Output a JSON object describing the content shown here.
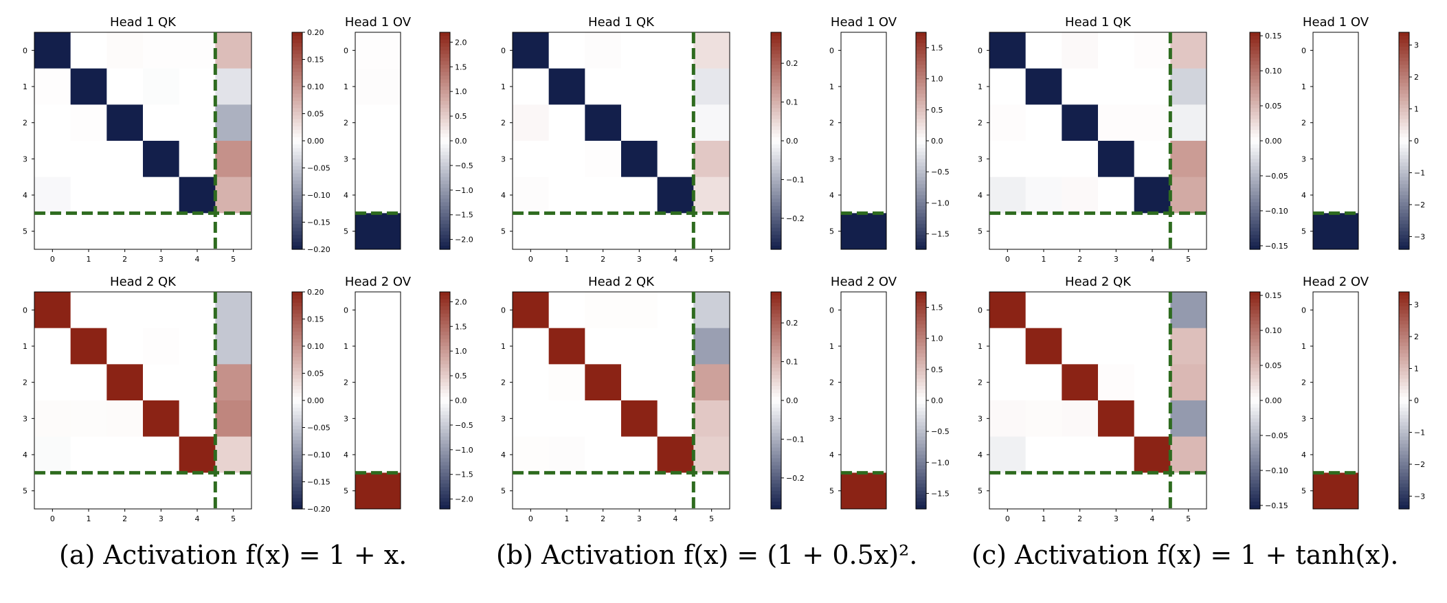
{
  "captions": [
    "(a) Activation f(x) = 1 + x.",
    "(b) Activation f(x) = (1 + 0.5x)².",
    "(c) Activation f(x) = 1 + tanh(x)."
  ],
  "colormap": {
    "neg": "#131f4b",
    "mid": "#ffffff",
    "pos": "#8b2315",
    "divider": "#2e6b1f"
  },
  "chart_data": [
    {
      "type": "heatmap",
      "panel": "a",
      "title": "Head 1 QK",
      "x_ticks": [
        "0",
        "1",
        "2",
        "3",
        "4",
        "5"
      ],
      "y_ticks": [
        "0",
        "1",
        "2",
        "3",
        "4",
        "5"
      ],
      "vmin": -0.2,
      "vmax": 0.2,
      "colorbar_ticks": [
        "0.20",
        "0.15",
        "0.10",
        "0.05",
        "0.00",
        "−0.05",
        "−0.10",
        "−0.15",
        "−0.20"
      ],
      "values": [
        [
          -0.2,
          0,
          0.004,
          0.002,
          0.002,
          0.06
        ],
        [
          0.002,
          -0.2,
          0,
          -0.003,
          0,
          -0.025
        ],
        [
          0,
          0.002,
          -0.2,
          0,
          0,
          -0.07
        ],
        [
          0,
          0,
          0,
          -0.2,
          0,
          0.1
        ],
        [
          -0.006,
          0,
          0,
          0,
          -0.2,
          0.07
        ],
        [
          0,
          0,
          0,
          0,
          0,
          0
        ]
      ]
    },
    {
      "type": "heatmap",
      "panel": "a",
      "title": "Head 1 OV",
      "x_ticks": [],
      "y_ticks": [
        "0",
        "1",
        "2",
        "3",
        "4",
        "5"
      ],
      "vmin": -2.2,
      "vmax": 2.2,
      "colorbar_ticks": [
        "2.0",
        "1.5",
        "1.0",
        "0.5",
        "0.0",
        "−0.5",
        "−1.0",
        "−1.5",
        "−2.0"
      ],
      "values": [
        [
          0.02
        ],
        [
          0.03
        ],
        [
          0
        ],
        [
          0
        ],
        [
          0
        ],
        [
          -2.2
        ]
      ]
    },
    {
      "type": "heatmap",
      "panel": "a",
      "title": "Head 2 QK",
      "x_ticks": [
        "0",
        "1",
        "2",
        "3",
        "4",
        "5"
      ],
      "y_ticks": [
        "0",
        "1",
        "2",
        "3",
        "4",
        "5"
      ],
      "vmin": -0.2,
      "vmax": 0.2,
      "colorbar_ticks": [
        "0.20",
        "0.15",
        "0.10",
        "0.05",
        "0.00",
        "−0.05",
        "−0.10",
        "−0.15",
        "−0.20"
      ],
      "values": [
        [
          0.2,
          0,
          0,
          0,
          0,
          -0.05
        ],
        [
          0,
          0.2,
          0,
          0.002,
          0,
          -0.05
        ],
        [
          0,
          0,
          0.2,
          0,
          0,
          0.1
        ],
        [
          0.004,
          0.003,
          0.004,
          0.2,
          0,
          0.11
        ],
        [
          -0.004,
          0,
          0,
          0,
          0.2,
          0.04
        ],
        [
          0,
          0,
          0,
          0,
          0,
          0
        ]
      ]
    },
    {
      "type": "heatmap",
      "panel": "a",
      "title": "Head 2 OV",
      "x_ticks": [],
      "y_ticks": [
        "0",
        "1",
        "2",
        "3",
        "4",
        "5"
      ],
      "vmin": -2.2,
      "vmax": 2.2,
      "colorbar_ticks": [
        "2.0",
        "1.5",
        "1.0",
        "0.5",
        "0.0",
        "−0.5",
        "−1.0",
        "−1.5",
        "−2.0"
      ],
      "values": [
        [
          0
        ],
        [
          0
        ],
        [
          0
        ],
        [
          0
        ],
        [
          0
        ],
        [
          2.2
        ]
      ]
    },
    {
      "type": "heatmap",
      "panel": "b",
      "title": "Head 1 QK",
      "x_ticks": [
        "0",
        "1",
        "2",
        "3",
        "4",
        "5"
      ],
      "y_ticks": [
        "0",
        "1",
        "2",
        "3",
        "4",
        "5"
      ],
      "vmin": -0.28,
      "vmax": 0.28,
      "colorbar_ticks": [
        "0.2",
        "0.1",
        "0.0",
        "−0.1",
        "−0.2"
      ],
      "values": [
        [
          -0.28,
          0,
          0.004,
          0,
          0,
          0.04
        ],
        [
          0,
          -0.28,
          0,
          0,
          0,
          -0.03
        ],
        [
          0.01,
          0,
          -0.28,
          0,
          0,
          -0.01
        ],
        [
          0,
          0,
          0.002,
          -0.28,
          0,
          0.07
        ],
        [
          0.004,
          0,
          0,
          0,
          -0.28,
          0.04
        ],
        [
          0,
          0,
          0,
          0,
          0,
          0
        ]
      ]
    },
    {
      "type": "heatmap",
      "panel": "b",
      "title": "Head 1 OV",
      "x_ticks": [],
      "y_ticks": [
        "0",
        "1",
        "2",
        "3",
        "4",
        "5"
      ],
      "vmin": -1.75,
      "vmax": 1.75,
      "colorbar_ticks": [
        "1.5",
        "1.0",
        "0.5",
        "0.0",
        "−0.5",
        "−1.0",
        "−1.5"
      ],
      "values": [
        [
          0
        ],
        [
          0
        ],
        [
          0
        ],
        [
          0
        ],
        [
          0
        ],
        [
          -1.75
        ]
      ]
    },
    {
      "type": "heatmap",
      "panel": "b",
      "title": "Head 2 QK",
      "x_ticks": [
        "0",
        "1",
        "2",
        "3",
        "4",
        "5"
      ],
      "y_ticks": [
        "0",
        "1",
        "2",
        "3",
        "4",
        "5"
      ],
      "vmin": -0.28,
      "vmax": 0.28,
      "colorbar_ticks": [
        "0.2",
        "0.1",
        "0.0",
        "−0.1",
        "−0.2"
      ],
      "values": [
        [
          0.28,
          0,
          0.003,
          0.003,
          0,
          -0.06
        ],
        [
          0,
          0.28,
          0,
          0,
          0,
          -0.12
        ],
        [
          0,
          0.003,
          0.28,
          0,
          0,
          0.12
        ],
        [
          0,
          0,
          0,
          0.28,
          0,
          0.07
        ],
        [
          0.003,
          0.004,
          0,
          0,
          0.28,
          0.06
        ],
        [
          0,
          0,
          0,
          0,
          0,
          0
        ]
      ]
    },
    {
      "type": "heatmap",
      "panel": "b",
      "title": "Head 2 OV",
      "x_ticks": [],
      "y_ticks": [
        "0",
        "1",
        "2",
        "3",
        "4",
        "5"
      ],
      "vmin": -1.75,
      "vmax": 1.75,
      "colorbar_ticks": [
        "1.5",
        "1.0",
        "0.5",
        "0.0",
        "−0.5",
        "−1.0",
        "−1.5"
      ],
      "values": [
        [
          0
        ],
        [
          0
        ],
        [
          0
        ],
        [
          0
        ],
        [
          0
        ],
        [
          1.75
        ]
      ]
    },
    {
      "type": "heatmap",
      "panel": "c",
      "title": "Head 1 QK",
      "x_ticks": [
        "0",
        "1",
        "2",
        "3",
        "4",
        "5"
      ],
      "y_ticks": [
        "0",
        "1",
        "2",
        "3",
        "4",
        "5"
      ],
      "vmin": -0.155,
      "vmax": 0.155,
      "colorbar_ticks": [
        "0.15",
        "0.10",
        "0.05",
        "0.00",
        "−0.05",
        "−0.10",
        "−0.15"
      ],
      "values": [
        [
          -0.155,
          0,
          0.004,
          0,
          0.002,
          0.04
        ],
        [
          0,
          -0.155,
          0,
          0,
          0,
          -0.03
        ],
        [
          0.002,
          0,
          -0.155,
          0.002,
          0.002,
          -0.01
        ],
        [
          0,
          0,
          0,
          -0.155,
          0,
          0.07
        ],
        [
          -0.01,
          -0.004,
          0.004,
          0,
          -0.155,
          0.06
        ],
        [
          0,
          0,
          0,
          0,
          0,
          0
        ]
      ]
    },
    {
      "type": "heatmap",
      "panel": "c",
      "title": "Head 1 OV",
      "x_ticks": [],
      "y_ticks": [
        "0",
        "1",
        "2",
        "3",
        "4",
        "5"
      ],
      "vmin": -3.4,
      "vmax": 3.4,
      "colorbar_ticks": [
        "3",
        "2",
        "1",
        "0",
        "−1",
        "−2",
        "−3"
      ],
      "values": [
        [
          0
        ],
        [
          0
        ],
        [
          0
        ],
        [
          0
        ],
        [
          0
        ],
        [
          -3.4
        ]
      ]
    },
    {
      "type": "heatmap",
      "panel": "c",
      "title": "Head 2 QK",
      "x_ticks": [
        "0",
        "1",
        "2",
        "3",
        "4",
        "5"
      ],
      "y_ticks": [
        "0",
        "1",
        "2",
        "3",
        "4",
        "5"
      ],
      "vmin": -0.155,
      "vmax": 0.155,
      "colorbar_ticks": [
        "0.15",
        "0.10",
        "0.05",
        "0.00",
        "−0.05",
        "−0.10",
        "−0.15"
      ],
      "values": [
        [
          0.155,
          0,
          0,
          0,
          0,
          -0.07
        ],
        [
          0,
          0.155,
          0,
          0,
          0,
          0.045
        ],
        [
          0,
          0,
          0.155,
          0.002,
          0,
          0.05
        ],
        [
          0.004,
          0.003,
          0.004,
          0.155,
          0,
          -0.07
        ],
        [
          -0.01,
          0,
          0,
          0,
          0.155,
          0.05
        ],
        [
          0,
          0,
          0,
          0,
          0,
          0
        ]
      ]
    },
    {
      "type": "heatmap",
      "panel": "c",
      "title": "Head 2 OV",
      "x_ticks": [],
      "y_ticks": [
        "0",
        "1",
        "2",
        "3",
        "4",
        "5"
      ],
      "vmin": -3.4,
      "vmax": 3.4,
      "colorbar_ticks": [
        "3",
        "2",
        "1",
        "0",
        "−1",
        "−2",
        "−3"
      ],
      "values": [
        [
          0
        ],
        [
          0
        ],
        [
          0
        ],
        [
          0
        ],
        [
          0
        ],
        [
          3.4
        ]
      ]
    }
  ]
}
